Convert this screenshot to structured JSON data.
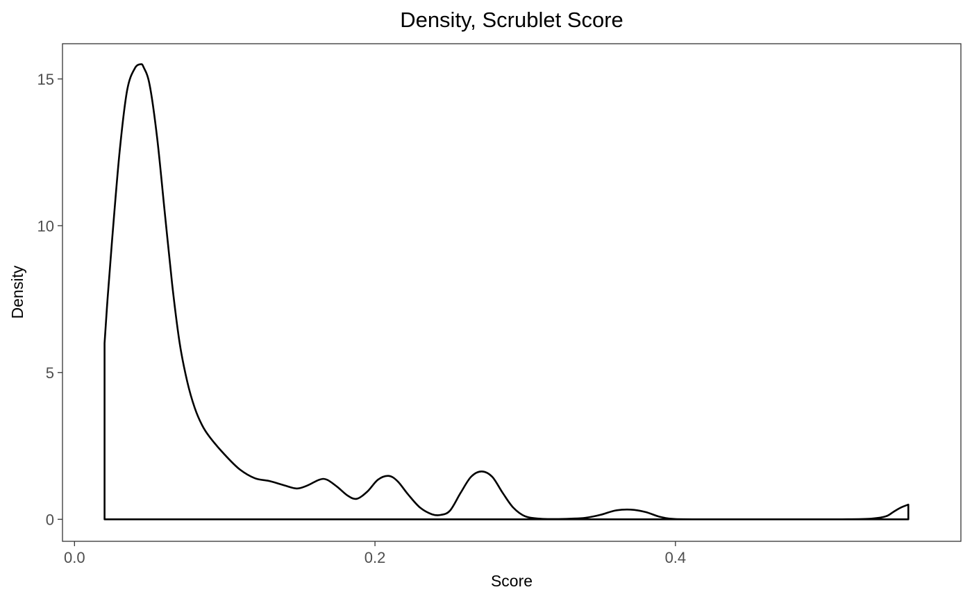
{
  "chart_data": {
    "type": "area",
    "title": "Density, Scrublet Score",
    "xlabel": "Score",
    "ylabel": "Density",
    "xlim": [
      -0.008,
      0.59
    ],
    "ylim": [
      -0.75,
      16.2
    ],
    "x_ticks": [
      0.0,
      0.2,
      0.4
    ],
    "x_tick_labels": [
      "0.0",
      "0.2",
      "0.4"
    ],
    "y_ticks": [
      0,
      5,
      10,
      15
    ],
    "y_tick_labels": [
      "0",
      "5",
      "10",
      "15"
    ],
    "grid": false,
    "legend": "none",
    "colors": {
      "line": "#000000",
      "fill": "none",
      "panel_border": "#333333"
    },
    "series": [
      {
        "x": [
          0.02,
          0.022,
          0.025,
          0.03,
          0.035,
          0.04,
          0.044,
          0.046,
          0.05,
          0.055,
          0.06,
          0.065,
          0.07,
          0.075,
          0.08,
          0.085,
          0.09,
          0.1,
          0.11,
          0.12,
          0.13,
          0.14,
          0.148,
          0.155,
          0.163,
          0.168,
          0.175,
          0.182,
          0.188,
          0.195,
          0.202,
          0.209,
          0.215,
          0.222,
          0.23,
          0.238,
          0.244,
          0.25,
          0.257,
          0.264,
          0.271,
          0.278,
          0.285,
          0.292,
          0.3,
          0.31,
          0.32,
          0.33,
          0.34,
          0.35,
          0.36,
          0.37,
          0.38,
          0.39,
          0.4,
          0.42,
          0.45,
          0.48,
          0.51,
          0.53,
          0.54,
          0.545,
          0.55,
          0.555
        ],
        "y": [
          6.0,
          7.5,
          9.5,
          12.5,
          14.6,
          15.35,
          15.5,
          15.4,
          14.8,
          13.0,
          10.5,
          8.0,
          6.0,
          4.7,
          3.8,
          3.2,
          2.8,
          2.2,
          1.7,
          1.4,
          1.3,
          1.15,
          1.05,
          1.15,
          1.35,
          1.35,
          1.1,
          0.8,
          0.7,
          0.95,
          1.35,
          1.48,
          1.3,
          0.85,
          0.4,
          0.17,
          0.15,
          0.3,
          0.9,
          1.45,
          1.63,
          1.45,
          0.9,
          0.4,
          0.1,
          0.02,
          0.01,
          0.02,
          0.05,
          0.15,
          0.3,
          0.33,
          0.25,
          0.08,
          0.01,
          0.0,
          0.0,
          0.0,
          0.0,
          0.02,
          0.1,
          0.25,
          0.4,
          0.5
        ]
      }
    ]
  }
}
